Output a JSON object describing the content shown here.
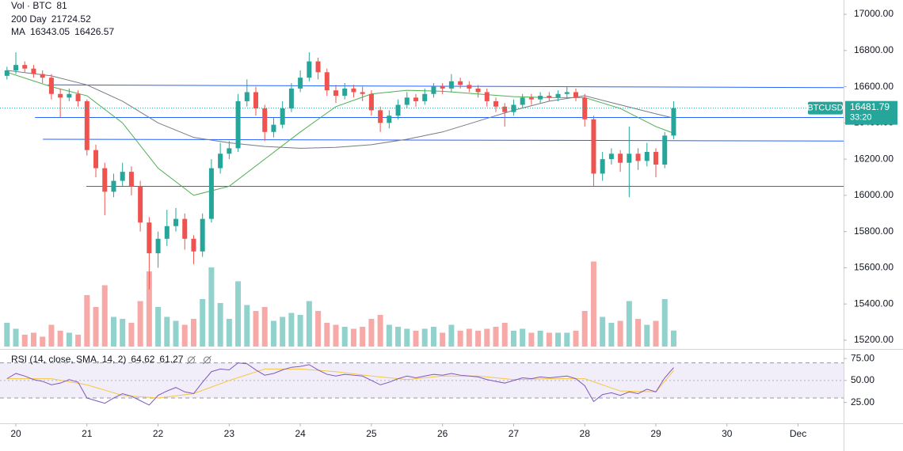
{
  "chart_data": {
    "type": "candlestick",
    "symbol": "BTCUSD",
    "countdown": "33:20",
    "up_color": "#26a69a",
    "down_color": "#ef5350",
    "xlim": [
      19.777,
      31.64
    ],
    "xticks": [
      20,
      21,
      22,
      23,
      24,
      25,
      26,
      27,
      28,
      29,
      30,
      {
        "value": 31,
        "label": "Dec"
      }
    ],
    "ylim": [
      15156,
      17079
    ],
    "yticks": [
      {
        "value": 15200,
        "label": "15200.00"
      },
      {
        "value": 15400,
        "label": "15400.00"
      },
      {
        "value": 15600,
        "label": "15600.00"
      },
      {
        "value": 15800,
        "label": "15800.00"
      },
      {
        "value": 16000,
        "label": "16000.00"
      },
      {
        "value": 16200,
        "label": "16200.00"
      },
      {
        "value": 16400,
        "label": "16400.00"
      },
      {
        "value": 16600,
        "label": "16600.00"
      },
      {
        "value": 16800,
        "label": "16800.00"
      },
      {
        "value": 17000,
        "label": "17000.00"
      }
    ],
    "x": [
      19.875,
      20,
      20.125,
      20.25,
      20.375,
      20.5,
      20.625,
      20.75,
      20.875,
      21,
      21.125,
      21.25,
      21.375,
      21.5,
      21.625,
      21.75,
      21.875,
      22,
      22.125,
      22.25,
      22.375,
      22.5,
      22.625,
      22.75,
      22.875,
      23,
      23.125,
      23.25,
      23.375,
      23.5,
      23.625,
      23.75,
      23.875,
      24,
      24.125,
      24.25,
      24.375,
      24.5,
      24.625,
      24.75,
      24.875,
      25,
      25.125,
      25.25,
      25.375,
      25.5,
      25.625,
      25.75,
      25.875,
      26,
      26.125,
      26.25,
      26.375,
      26.5,
      26.625,
      26.75,
      26.875,
      27,
      27.125,
      27.25,
      27.375,
      27.5,
      27.625,
      27.75,
      27.875,
      28,
      28.125,
      28.25,
      28.375,
      28.5,
      28.625,
      28.75,
      28.875,
      29,
      29.125,
      29.25
    ],
    "open": [
      16660,
      16690,
      16720,
      16700,
      16670,
      16650,
      16560,
      16540,
      16560,
      16520,
      16250,
      16150,
      16020,
      16080,
      16130,
      16050,
      15850,
      15680,
      15760,
      15830,
      15870,
      15760,
      15690,
      15870,
      16150,
      16230,
      16260,
      16520,
      16570,
      16480,
      16350,
      16390,
      16480,
      16590,
      16650,
      16740,
      16680,
      16580,
      16550,
      16590,
      16570,
      16560,
      16470,
      16400,
      16440,
      16500,
      16540,
      16520,
      16560,
      16600,
      16590,
      16630,
      16610,
      16590,
      16570,
      16520,
      16490,
      16460,
      16500,
      16540,
      16530,
      16550,
      16540,
      16560,
      16570,
      16540,
      16420,
      16120,
      16200,
      16230,
      16180,
      16230,
      16190,
      16240,
      16170,
      16330
    ],
    "high": [
      16710,
      16790,
      16740,
      16720,
      16690,
      16670,
      16590,
      16590,
      16580,
      16530,
      16280,
      16180,
      16120,
      16180,
      16160,
      16080,
      15880,
      15800,
      15920,
      15930,
      15900,
      15780,
      15900,
      16200,
      16290,
      16300,
      16560,
      16640,
      16600,
      16500,
      16430,
      16520,
      16620,
      16690,
      16790,
      16760,
      16700,
      16610,
      16620,
      16610,
      16600,
      16580,
      16490,
      16470,
      16530,
      16570,
      16560,
      16590,
      16620,
      16620,
      16670,
      16650,
      16630,
      16610,
      16590,
      16540,
      16510,
      16530,
      16560,
      16560,
      16570,
      16570,
      16580,
      16600,
      16590,
      16560,
      16440,
      16240,
      16260,
      16250,
      16380,
      16260,
      16290,
      16260,
      16350,
      16520
    ],
    "low": [
      16640,
      16670,
      16680,
      16650,
      16620,
      16530,
      16430,
      16520,
      16490,
      16220,
      16100,
      15890,
      15990,
      16050,
      16000,
      15800,
      15480,
      15600,
      15720,
      15800,
      15700,
      15620,
      15660,
      15850,
      16120,
      16200,
      16240,
      16490,
      16440,
      16300,
      16320,
      16370,
      16460,
      16570,
      16630,
      16640,
      16550,
      16510,
      16530,
      16540,
      16520,
      16440,
      16350,
      16370,
      16420,
      16480,
      16490,
      16500,
      16540,
      16560,
      16570,
      16590,
      16570,
      16540,
      16490,
      16460,
      16380,
      16440,
      16480,
      16500,
      16510,
      16520,
      16520,
      16540,
      16520,
      16380,
      16050,
      16080,
      16170,
      16130,
      15990,
      16140,
      16160,
      16100,
      16150,
      16310
    ],
    "close": [
      16690,
      16720,
      16700,
      16670,
      16650,
      16560,
      16540,
      16560,
      16520,
      16250,
      16150,
      16020,
      16080,
      16130,
      16050,
      15850,
      15680,
      15760,
      15830,
      15870,
      15760,
      15690,
      15870,
      16150,
      16230,
      16260,
      16520,
      16570,
      16480,
      16350,
      16390,
      16480,
      16590,
      16650,
      16740,
      16680,
      16580,
      16550,
      16590,
      16570,
      16560,
      16470,
      16400,
      16440,
      16500,
      16540,
      16520,
      16560,
      16600,
      16590,
      16630,
      16610,
      16590,
      16570,
      16520,
      16490,
      16460,
      16500,
      16540,
      16530,
      16550,
      16540,
      16560,
      16570,
      16540,
      16420,
      16120,
      16200,
      16230,
      16180,
      16230,
      16190,
      16240,
      16170,
      16330,
      16481.79
    ],
    "volume": {
      "name": "Vol · BTC",
      "values": [
        120,
        90,
        60,
        70,
        50,
        110,
        80,
        70,
        60,
        260,
        200,
        310,
        150,
        140,
        120,
        230,
        380,
        200,
        150,
        130,
        110,
        140,
        240,
        400,
        220,
        140,
        330,
        210,
        180,
        200,
        130,
        150,
        170,
        160,
        230,
        180,
        120,
        110,
        100,
        90,
        100,
        140,
        160,
        110,
        100,
        90,
        80,
        90,
        100,
        70,
        110,
        80,
        90,
        80,
        90,
        100,
        120,
        80,
        90,
        70,
        80,
        70,
        70,
        70,
        80,
        180,
        430,
        150,
        120,
        130,
        230,
        140,
        110,
        130,
        240,
        81
      ]
    },
    "studies": [
      {
        "name": "200 Day",
        "value": 21724.52
      }
    ],
    "ma": {
      "name": "MA",
      "x": [
        19.875,
        20.5,
        21,
        21.5,
        22,
        22.5,
        23,
        23.5,
        24,
        24.5,
        25,
        25.5,
        26,
        26.5,
        27,
        27.5,
        28,
        28.5,
        29,
        29.25
      ],
      "series": [
        {
          "color": "#4caf50",
          "values": [
            16680,
            16600,
            16550,
            16400,
            16150,
            16000,
            16050,
            16200,
            16350,
            16490,
            16560,
            16580,
            16575,
            16560,
            16545,
            16540,
            16540,
            16480,
            16380,
            16343.05
          ]
        },
        {
          "color": "#787b86",
          "values": [
            16690,
            16660,
            16610,
            16520,
            16400,
            16320,
            16290,
            16270,
            16260,
            16265,
            16280,
            16310,
            16350,
            16410,
            16470,
            16520,
            16550,
            16500,
            16450,
            16426.57
          ]
        }
      ]
    },
    "trendlines": {
      "color": "#2962ff",
      "lines": [
        {
          "x": [
            20.45,
            31.64
          ],
          "values": [
            16610,
            16595
          ]
        },
        {
          "x": [
            20.27,
            31.64
          ],
          "values": [
            16430,
            16430
          ]
        },
        {
          "x": [
            20.38,
            31.64
          ],
          "values": [
            16310,
            16300
          ]
        },
        {
          "x": [
            20.99,
            31.64
          ],
          "values": [
            16050,
            16050
          ]
        }
      ]
    },
    "rsi": {
      "name": "RSI (14, close, SMA, 14, 2)",
      "color": "#7e57c2",
      "ylim": [
        3,
        80.5
      ],
      "yticks": [
        {
          "value": 25,
          "label": "25.00"
        },
        {
          "value": 50,
          "label": "50.00"
        },
        {
          "value": 75,
          "label": "75.00"
        }
      ],
      "bands": [
        30,
        70
      ],
      "middle": 50,
      "values": [
        52,
        58,
        55,
        51,
        49,
        45,
        47,
        51,
        48,
        30,
        27,
        24,
        30,
        35,
        32,
        27,
        22,
        33,
        38,
        42,
        37,
        35,
        48,
        60,
        63,
        62,
        70,
        69,
        62,
        56,
        58,
        62,
        65,
        66,
        68,
        62,
        57,
        55,
        57,
        56,
        55,
        50,
        45,
        48,
        52,
        55,
        53,
        55,
        57,
        56,
        58,
        56,
        55,
        54,
        51,
        49,
        47,
        50,
        53,
        52,
        54,
        53,
        54,
        55,
        52,
        44,
        26,
        34,
        36,
        33,
        37,
        35,
        40,
        37,
        53,
        64.62
      ],
      "sma": {
        "color": "#f5c842",
        "values": [
          52,
          52,
          45,
          33,
          30,
          35,
          50,
          63,
          63,
          60,
          55,
          51,
          55,
          55,
          51,
          52,
          52,
          38,
          37,
          61.27
        ]
      }
    }
  }
}
